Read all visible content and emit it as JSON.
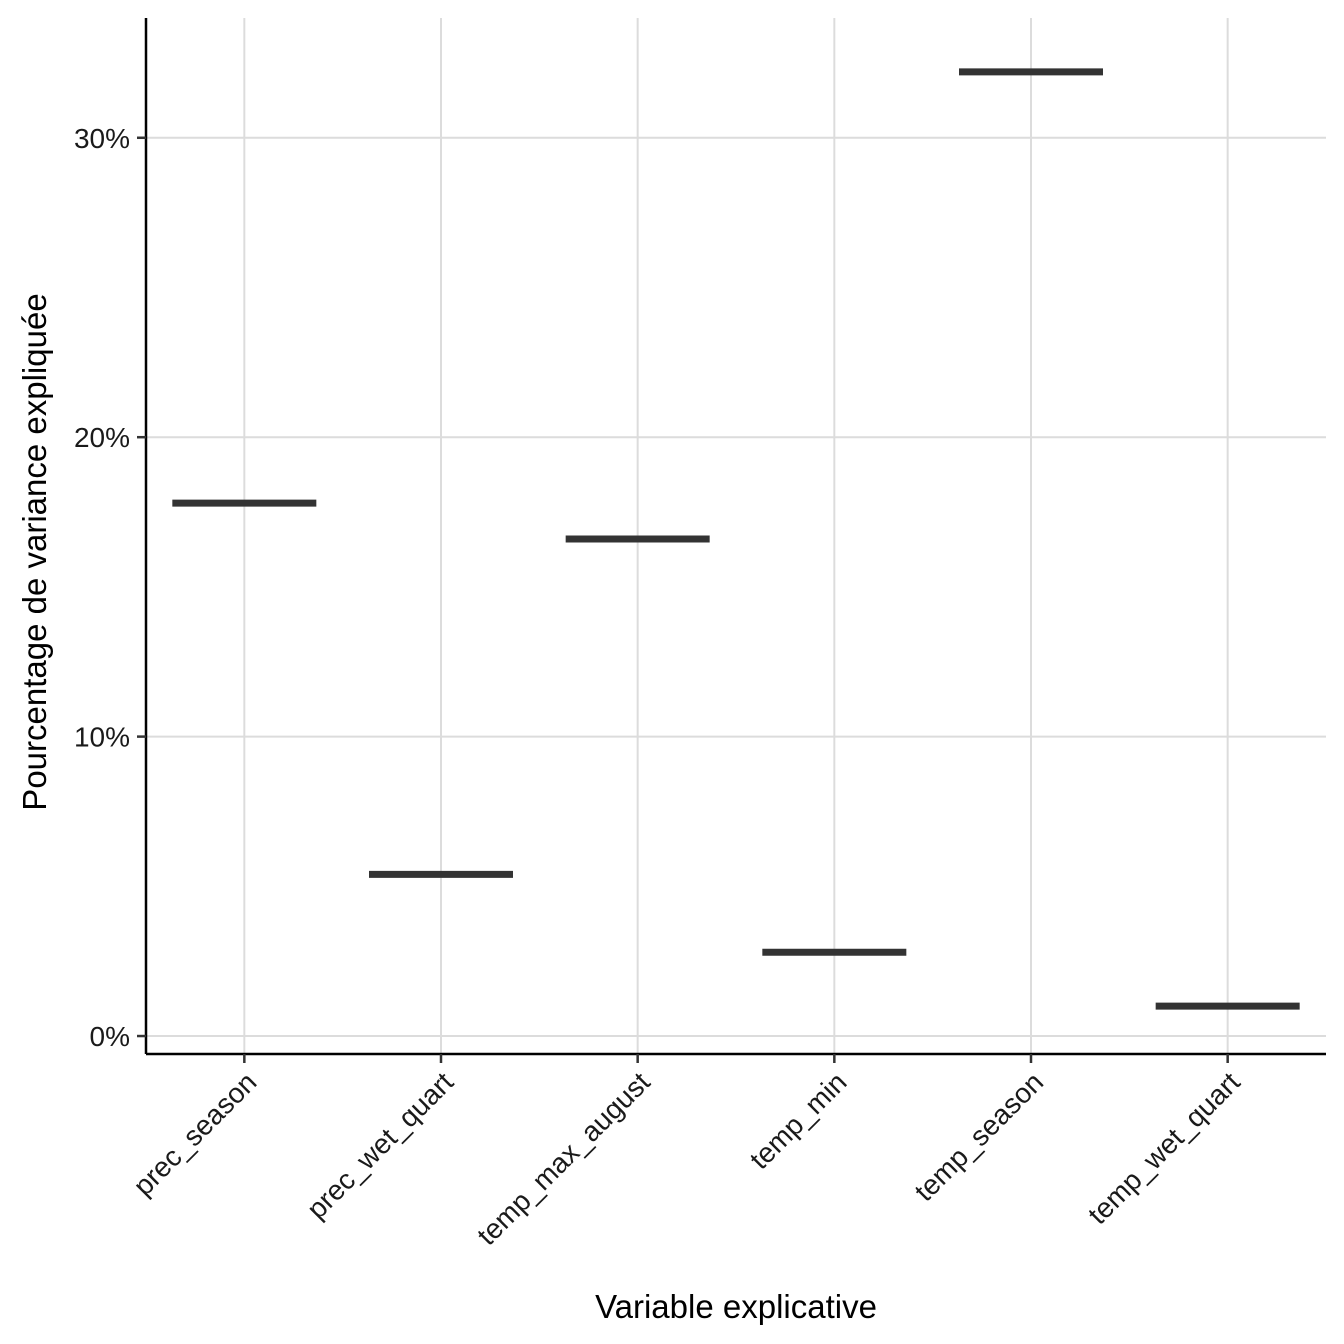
{
  "chart_data": {
    "type": "boxplot",
    "title": "",
    "xlabel": "Variable explicative",
    "ylabel": "Pourcentage de variance expliquée",
    "categories": [
      "prec_season",
      "prec_wet_quart",
      "temp_max_august",
      "temp_min",
      "temp_season",
      "temp_wet_quart"
    ],
    "values": [
      17.8,
      5.4,
      16.6,
      2.8,
      32.2,
      1.0
    ],
    "ylim": [
      -0.6,
      34
    ],
    "yticks": [
      0,
      10,
      20,
      30
    ],
    "ytick_labels": [
      "0%",
      "10%",
      "20%",
      "30%"
    ],
    "grid": true,
    "legend": "none",
    "mark_color": "#333333"
  }
}
